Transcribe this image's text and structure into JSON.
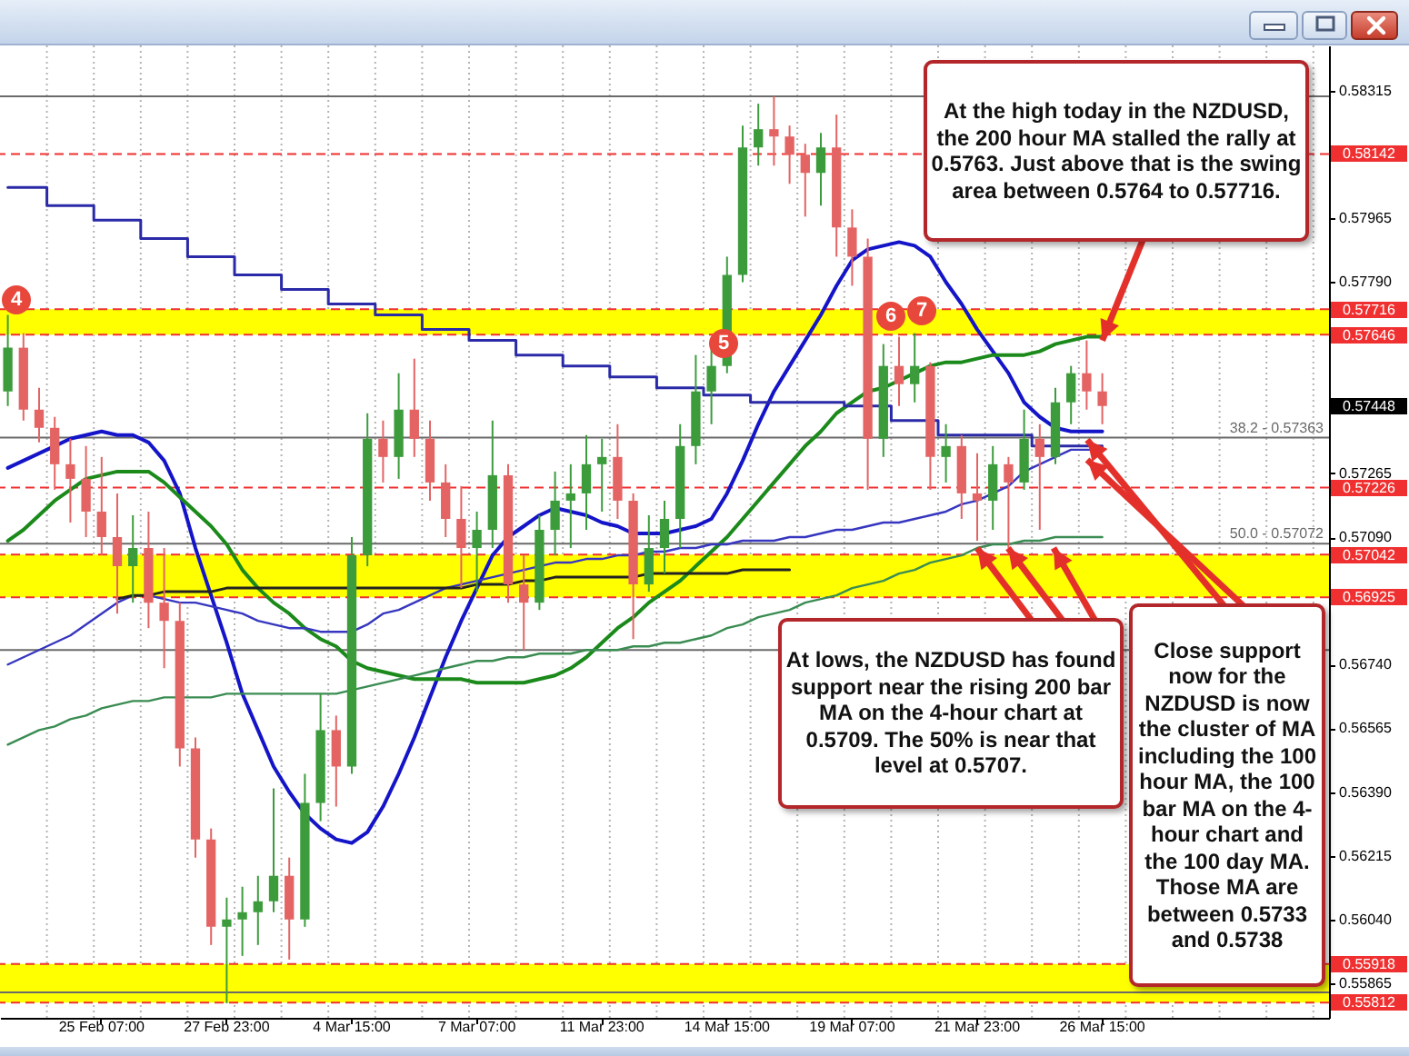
{
  "chart_data": {
    "type": "candlestick",
    "categories": [
      null,
      null,
      null,
      null,
      null,
      null,
      "25 Feb 07:00",
      null,
      null,
      null,
      null,
      null,
      null,
      null,
      "27 Feb 23:00",
      null,
      null,
      null,
      null,
      null,
      null,
      null,
      "4 Mar 15:00",
      null,
      null,
      null,
      null,
      null,
      null,
      null,
      "7 Mar 07:00",
      null,
      null,
      null,
      null,
      null,
      null,
      null,
      "11 Mar 23:00",
      null,
      null,
      null,
      null,
      null,
      null,
      null,
      "14 Mar 15:00",
      null,
      null,
      null,
      null,
      null,
      null,
      null,
      "19 Mar 07:00",
      null,
      null,
      null,
      null,
      null,
      null,
      null,
      "21 Mar 23:00",
      null,
      null,
      null,
      null,
      null,
      null,
      null,
      "26 Mar 15:00",
      null,
      null,
      null,
      null,
      null,
      null,
      null,
      null,
      null,
      null,
      null,
      null,
      null,
      null
    ],
    "ohlc": [
      [
        0.5749,
        0.577,
        0.5745,
        0.5761
      ],
      [
        0.5761,
        0.5765,
        0.5741,
        0.5744
      ],
      [
        0.5744,
        0.575,
        0.5735,
        0.5739
      ],
      [
        0.5739,
        0.5742,
        0.5722,
        0.5729
      ],
      [
        0.5729,
        0.5736,
        0.5713,
        0.5725
      ],
      [
        0.5725,
        0.5734,
        0.5709,
        0.5716
      ],
      [
        0.5716,
        0.5731,
        0.5704,
        0.5709
      ],
      [
        0.5709,
        0.5721,
        0.5688,
        0.5701
      ],
      [
        0.5701,
        0.5715,
        0.5691,
        0.5706
      ],
      [
        0.5706,
        0.5716,
        0.5684,
        0.5691
      ],
      [
        0.5691,
        0.5706,
        0.5673,
        0.5686
      ],
      [
        0.5686,
        0.5691,
        0.5646,
        0.5651
      ],
      [
        0.5651,
        0.5654,
        0.5621,
        0.5626
      ],
      [
        0.5626,
        0.5629,
        0.5597,
        0.5602
      ],
      [
        0.5602,
        0.561,
        0.5581,
        0.5604
      ],
      [
        0.5604,
        0.5613,
        0.5594,
        0.5606
      ],
      [
        0.5606,
        0.5616,
        0.5597,
        0.5609
      ],
      [
        0.5609,
        0.564,
        0.5606,
        0.5616
      ],
      [
        0.5616,
        0.5621,
        0.5593,
        0.5604
      ],
      [
        0.5604,
        0.5644,
        0.5602,
        0.5636
      ],
      [
        0.5636,
        0.5666,
        0.5631,
        0.5656
      ],
      [
        0.5656,
        0.566,
        0.5635,
        0.5646
      ],
      [
        0.5646,
        0.5709,
        0.5644,
        0.5704
      ],
      [
        0.5704,
        0.5743,
        0.5701,
        0.5736
      ],
      [
        0.5736,
        0.5741,
        0.5724,
        0.5731
      ],
      [
        0.5731,
        0.5754,
        0.5725,
        0.5744
      ],
      [
        0.5744,
        0.5758,
        0.5731,
        0.5736
      ],
      [
        0.5736,
        0.5741,
        0.5719,
        0.5724
      ],
      [
        0.5724,
        0.5729,
        0.5709,
        0.5714
      ],
      [
        0.5714,
        0.5723,
        0.5695,
        0.5706
      ],
      [
        0.5706,
        0.5716,
        0.5694,
        0.5711
      ],
      [
        0.5711,
        0.5741,
        0.5706,
        0.5726
      ],
      [
        0.5726,
        0.5729,
        0.5691,
        0.5696
      ],
      [
        0.5696,
        0.5704,
        0.5678,
        0.5691
      ],
      [
        0.5691,
        0.5715,
        0.5689,
        0.5711
      ],
      [
        0.5711,
        0.5727,
        0.5704,
        0.5719
      ],
      [
        0.5719,
        0.5729,
        0.5706,
        0.5721
      ],
      [
        0.5721,
        0.5737,
        0.5711,
        0.5729
      ],
      [
        0.5729,
        0.5736,
        0.5716,
        0.5731
      ],
      [
        0.5731,
        0.574,
        0.5714,
        0.5719
      ],
      [
        0.5719,
        0.5721,
        0.5681,
        0.5696
      ],
      [
        0.5696,
        0.5715,
        0.5694,
        0.5706
      ],
      [
        0.5706,
        0.5719,
        0.5699,
        0.5714
      ],
      [
        0.5714,
        0.574,
        0.5706,
        0.5734
      ],
      [
        0.5734,
        0.5759,
        0.5729,
        0.5749
      ],
      [
        0.5749,
        0.5762,
        0.574,
        0.5756
      ],
      [
        0.5756,
        0.5786,
        0.5754,
        0.5781
      ],
      [
        0.5781,
        0.5822,
        0.5779,
        0.5816
      ],
      [
        0.5816,
        0.5828,
        0.5811,
        0.5821
      ],
      [
        0.5821,
        0.583,
        0.5811,
        0.5819
      ],
      [
        0.5819,
        0.5822,
        0.5806,
        0.5814
      ],
      [
        0.5814,
        0.5817,
        0.5797,
        0.5809
      ],
      [
        0.5809,
        0.582,
        0.58,
        0.5816
      ],
      [
        0.5816,
        0.5825,
        0.5786,
        0.5794
      ],
      [
        0.5794,
        0.5799,
        0.5778,
        0.5786
      ],
      [
        0.5786,
        0.5791,
        0.5722,
        0.5736
      ],
      [
        0.5736,
        0.5762,
        0.5731,
        0.5756
      ],
      [
        0.5756,
        0.5764,
        0.5745,
        0.5751
      ],
      [
        0.5751,
        0.5765,
        0.5746,
        0.5756
      ],
      [
        0.5756,
        0.5757,
        0.5722,
        0.5731
      ],
      [
        0.5731,
        0.574,
        0.5724,
        0.5734
      ],
      [
        0.5734,
        0.5737,
        0.5714,
        0.5721
      ],
      [
        0.5721,
        0.5732,
        0.5708,
        0.5719
      ],
      [
        0.5719,
        0.5734,
        0.5711,
        0.5729
      ],
      [
        0.5729,
        0.5731,
        0.5706,
        0.5724
      ],
      [
        0.5724,
        0.5744,
        0.5722,
        0.5736
      ],
      [
        0.5736,
        0.574,
        0.5711,
        0.5731
      ],
      [
        0.5731,
        0.575,
        0.5729,
        0.5746
      ],
      [
        0.5746,
        0.5756,
        0.574,
        0.5754
      ],
      [
        0.5754,
        0.5763,
        0.5744,
        0.5749
      ],
      [
        0.5749,
        0.5754,
        0.574,
        0.5745
      ],
      null,
      null,
      null,
      null,
      null,
      null,
      null,
      null,
      null,
      null,
      null,
      null,
      null,
      null
    ],
    "colors": [
      "#3c9c3c",
      "#e46464",
      "#e46464",
      "#e46464",
      "#e46464",
      "#e46464",
      "#e46464",
      "#e46464",
      "#3c9c3c",
      "#e46464",
      "#e46464",
      "#e46464",
      "#e46464",
      "#e46464",
      "#3c9c3c",
      "#3c9c3c",
      "#3c9c3c",
      "#3c9c3c",
      "#e46464",
      "#3c9c3c",
      "#3c9c3c",
      "#e46464",
      "#3c9c3c",
      "#3c9c3c",
      "#e46464",
      "#3c9c3c",
      "#e46464",
      "#e46464",
      "#e46464",
      "#e46464",
      "#3c9c3c",
      "#3c9c3c",
      "#e46464",
      "#e46464",
      "#3c9c3c",
      "#3c9c3c",
      "#3c9c3c",
      "#3c9c3c",
      "#3c9c3c",
      "#e46464",
      "#e46464",
      "#3c9c3c",
      "#3c9c3c",
      "#3c9c3c",
      "#3c9c3c",
      "#3c9c3c",
      "#3c9c3c",
      "#3c9c3c",
      "#3c9c3c",
      "#e46464",
      "#e46464",
      "#e46464",
      "#3c9c3c",
      "#e46464",
      "#e46464",
      "#e46464",
      "#3c9c3c",
      "#e46464",
      "#3c9c3c",
      "#e46464",
      "#3c9c3c",
      "#e46464",
      "#e46464",
      "#3c9c3c",
      "#e46464",
      "#3c9c3c",
      "#e46464",
      "#3c9c3c",
      "#3c9c3c",
      "#e46464",
      "#e46464",
      null,
      null,
      null,
      null,
      null,
      null,
      null,
      null,
      null,
      null,
      null,
      null,
      null,
      null
    ],
    "series": [
      {
        "type": "line",
        "color": "#1414c8",
        "values": [
          0.5728,
          0.573,
          0.5732,
          0.5734,
          0.5736,
          0.5737,
          0.5738,
          0.5737,
          0.5737,
          0.5735,
          0.573,
          0.5721,
          0.5706,
          0.5693,
          0.568,
          0.5666,
          0.5656,
          0.5646,
          0.5639,
          0.5633,
          0.5629,
          0.5626,
          0.5625,
          0.5628,
          0.5635,
          0.5644,
          0.5654,
          0.5665,
          0.5676,
          0.5686,
          0.5695,
          0.5704,
          0.5709,
          0.5712,
          0.5715,
          0.5717,
          0.5716,
          0.5715,
          0.5713,
          0.5712,
          0.571,
          0.571,
          0.571,
          0.5711,
          0.5712,
          0.5714,
          0.5721,
          0.573,
          0.574,
          0.5749,
          0.5756,
          0.5763,
          0.577,
          0.5778,
          0.5785,
          0.5788,
          0.5789,
          0.579,
          0.5789,
          0.5786,
          0.5779,
          0.5773,
          0.5766,
          0.576,
          0.5754,
          0.5746,
          0.5742,
          0.5739,
          0.5738,
          0.5738,
          0.5738,
          null,
          null,
          null,
          null,
          null,
          null,
          null,
          null,
          null,
          null,
          null,
          null,
          null,
          null
        ]
      },
      {
        "type": "line",
        "color": "#1b8a1b",
        "values": [
          0.5708,
          0.5711,
          0.5715,
          0.5719,
          0.5722,
          0.5725,
          0.5726,
          0.5727,
          0.5727,
          0.5727,
          0.5724,
          0.572,
          0.5716,
          0.5712,
          0.5707,
          0.57,
          0.5695,
          0.5691,
          0.5688,
          0.5684,
          0.5681,
          0.5679,
          0.5675,
          0.5673,
          0.5672,
          0.5671,
          0.567,
          0.567,
          0.567,
          0.567,
          0.5669,
          0.5669,
          0.5669,
          0.5669,
          0.567,
          0.5671,
          0.5673,
          0.5676,
          0.568,
          0.5684,
          0.5687,
          0.5691,
          0.5694,
          0.5697,
          0.5701,
          0.5705,
          0.5709,
          0.5714,
          0.5719,
          0.5724,
          0.5729,
          0.5734,
          0.5738,
          0.5743,
          0.5746,
          0.5749,
          0.575,
          0.5752,
          0.5754,
          0.5756,
          0.5757,
          0.5757,
          0.5758,
          0.5759,
          0.5759,
          0.5759,
          0.576,
          0.5762,
          0.5763,
          0.5764,
          0.5764,
          null,
          null,
          null,
          null,
          null,
          null,
          null,
          null,
          null,
          null,
          null,
          null,
          null,
          null
        ]
      },
      {
        "type": "line",
        "color": "#3636c0",
        "values": [
          0.5674,
          0.5676,
          0.5678,
          0.568,
          0.5682,
          0.5685,
          0.5688,
          0.5691,
          0.5693,
          0.5693,
          0.5692,
          0.5691,
          0.5691,
          0.569,
          0.5689,
          0.5688,
          0.5686,
          0.5685,
          0.5684,
          0.5684,
          0.5683,
          0.5683,
          0.5683,
          0.5685,
          0.5688,
          0.5689,
          0.5691,
          0.5693,
          0.5695,
          0.5696,
          0.5697,
          0.5698,
          0.5699,
          0.57,
          0.5701,
          0.5702,
          0.5702,
          0.5703,
          0.5703,
          0.5704,
          0.5704,
          0.5705,
          0.5705,
          0.5706,
          0.5706,
          0.5707,
          0.5707,
          0.5708,
          0.5708,
          0.5708,
          0.5709,
          0.5709,
          0.571,
          0.5711,
          0.5711,
          0.5712,
          0.5713,
          0.5713,
          0.5714,
          0.5715,
          0.5716,
          0.5718,
          0.5719,
          0.5721,
          0.5723,
          0.5727,
          0.5729,
          0.5731,
          0.5733,
          0.5733,
          0.5733,
          null,
          null,
          null,
          null,
          null,
          null,
          null,
          null,
          null,
          null,
          null,
          null,
          null,
          null
        ]
      },
      {
        "type": "line",
        "color": "#3a8c52",
        "values": [
          0.5652,
          0.5654,
          0.5656,
          0.5657,
          0.5659,
          0.566,
          0.5662,
          0.5663,
          0.5664,
          0.5664,
          0.5665,
          0.5665,
          0.5665,
          0.5665,
          0.5666,
          0.5666,
          0.5666,
          0.5666,
          0.5666,
          0.5666,
          0.5666,
          0.5666,
          0.5667,
          0.5668,
          0.5669,
          0.567,
          0.5671,
          0.5672,
          0.5673,
          0.5674,
          0.5675,
          0.5675,
          0.5676,
          0.5676,
          0.5677,
          0.5677,
          0.5677,
          0.5678,
          0.5678,
          0.5678,
          0.5679,
          0.5679,
          0.568,
          0.568,
          0.5681,
          0.5682,
          0.5684,
          0.5685,
          0.5687,
          0.5688,
          0.5689,
          0.5691,
          0.5692,
          0.5693,
          0.5695,
          0.5696,
          0.5697,
          0.5699,
          0.57,
          0.5702,
          0.5703,
          0.5704,
          0.5706,
          0.5707,
          0.5707,
          0.5708,
          0.5708,
          0.5709,
          0.5709,
          0.5709,
          0.5709,
          null,
          null,
          null,
          null,
          null,
          null,
          null,
          null,
          null,
          null,
          null,
          null,
          null,
          null
        ]
      },
      {
        "type": "line",
        "color": "#222222",
        "values": [
          null,
          null,
          null,
          null,
          null,
          null,
          null,
          0.5692,
          0.5693,
          0.5693,
          0.5694,
          0.5694,
          0.5694,
          0.5694,
          0.5695,
          0.5695,
          0.5695,
          0.5695,
          0.5695,
          0.5695,
          0.5695,
          0.5695,
          0.5695,
          0.5695,
          0.5695,
          0.5695,
          0.5695,
          0.5695,
          0.5695,
          0.5695,
          0.5696,
          0.5696,
          0.5696,
          0.5697,
          0.5697,
          0.5698,
          0.5698,
          0.5698,
          0.5698,
          0.5698,
          0.5698,
          0.5699,
          0.5699,
          0.5699,
          0.5699,
          0.5699,
          0.5699,
          0.57,
          0.57,
          0.57,
          0.57,
          null,
          null,
          null,
          null,
          null,
          null,
          null,
          null,
          null,
          null,
          null,
          null,
          null,
          null,
          null,
          null,
          null,
          null,
          null,
          null,
          null,
          null,
          null,
          null,
          null,
          null,
          null,
          null,
          null,
          null,
          null,
          null,
          null,
          null
        ]
      },
      {
        "type": "step",
        "color": "#2a2aa8",
        "values": [
          0.5805,
          0.5805,
          0.5805,
          0.58,
          0.58,
          0.58,
          0.5796,
          0.5796,
          0.5796,
          0.5791,
          0.5791,
          0.5791,
          0.5786,
          0.5786,
          0.5786,
          0.5781,
          0.5781,
          0.5781,
          0.5777,
          0.5777,
          0.5777,
          0.5773,
          0.5773,
          0.5773,
          0.577,
          0.577,
          0.577,
          0.5766,
          0.5766,
          0.5766,
          0.5763,
          0.5763,
          0.5763,
          0.5759,
          0.5759,
          0.5759,
          0.5756,
          0.5756,
          0.5756,
          0.5753,
          0.5753,
          0.5753,
          0.575,
          0.575,
          0.575,
          0.5748,
          0.5748,
          0.5748,
          0.5746,
          0.5746,
          0.5746,
          0.5746,
          0.5746,
          0.5746,
          0.5745,
          0.5745,
          0.5745,
          0.5741,
          0.5741,
          0.5741,
          0.5737,
          0.5737,
          0.5737,
          0.5737,
          0.5737,
          0.5737,
          0.5734,
          0.5734,
          0.5734,
          0.5734,
          0.5734,
          null,
          null,
          null,
          null,
          null,
          null,
          null,
          null,
          null,
          null,
          null,
          null,
          null,
          null
        ]
      }
    ],
    "ylim": [
      0.5577,
      0.5844
    ],
    "yticks": [
      0.58315,
      0.57965,
      {
        "value": 0.5779,
        "label": "0.57790"
      },
      0.57265,
      {
        "value": 0.5709,
        "label": "0.57090"
      },
      {
        "value": 0.5674,
        "label": "0.56740"
      },
      0.56565,
      {
        "value": 0.5639,
        "label": "0.56390"
      },
      0.56215,
      {
        "value": 0.5604,
        "label": "0.56040"
      },
      0.55865
    ],
    "grid": "x",
    "bands": [
      {
        "axis": "y",
        "from": 0.57646,
        "to": 0.57716,
        "color": "#ffff00"
      },
      {
        "axis": "y",
        "from": 0.56925,
        "to": 0.57042,
        "color": "#ffff00"
      },
      {
        "axis": "y",
        "from": 0.55812,
        "to": 0.55918,
        "color": "#ffff00"
      }
    ],
    "ref_lines": [
      {
        "axis": "y",
        "value": 0.583,
        "color": "#6a6a6a",
        "line_style": "solid"
      },
      {
        "axis": "y",
        "value": 0.58142,
        "label": "0.58142",
        "color": "#f03030",
        "line_style": "dashed"
      },
      {
        "axis": "y",
        "value": 0.57716,
        "label": "0.57716",
        "color": "#f03030",
        "line_style": "dashed"
      },
      {
        "axis": "y",
        "value": 0.57646,
        "label": "0.57646",
        "color": "#f03030",
        "line_style": "dashed"
      },
      {
        "axis": "y",
        "value": 0.57363,
        "color": "#6a6a6a",
        "line_style": "solid"
      },
      {
        "axis": "y",
        "value": 0.57226,
        "label": "0.57226",
        "color": "#f03030",
        "line_style": "dashed"
      },
      {
        "axis": "y",
        "value": 0.57072,
        "color": "#6a6a6a",
        "line_style": "solid"
      },
      {
        "axis": "y",
        "value": 0.57042,
        "label": "0.57042",
        "color": "#f03030",
        "line_style": "dashed"
      },
      {
        "axis": "y",
        "value": 0.56925,
        "label": "0.56925",
        "color": "#f03030",
        "line_style": "dashed"
      },
      {
        "axis": "y",
        "value": 0.5678,
        "color": "#6a6a6a",
        "line_style": "solid"
      },
      {
        "axis": "y",
        "value": 0.55918,
        "label": "0.55918",
        "color": "#f03030",
        "line_style": "dashed"
      },
      {
        "axis": "y",
        "value": 0.5584,
        "color": "#6a6a6a",
        "line_style": "solid"
      },
      {
        "axis": "y",
        "value": 0.55812,
        "label": "0.55812",
        "color": "#f03030",
        "line_style": "dashed"
      }
    ],
    "annotations": [
      {
        "text": "At the high today in the NZDUSD, the 200 hour MA stalled the rally at 0.5763. Just above that is the swing area between 0.5764 to 0.57716.",
        "x": "26 Mar 15:00",
        "y": 0.5763
      },
      {
        "text": "At lows, the NZDUSD has found support near the rising 200 bar MA on the 4-hour chart at 0.5709. The 50% is near that level at 0.5707.",
        "x": "21 Mar 23:00",
        "y": 0.5706
      },
      "Close support now for the NZDUSD is now the cluster of MA including the 100 hour MA, the 100 bar MA on the 4-hour chart and the 100 day MA. Those MA are between 0.5733 and 0.5738",
      {
        "text": "4",
        "y": 0.577
      },
      {
        "text": "5",
        "y": 0.5762
      },
      {
        "text": "6",
        "y": 0.5762
      },
      {
        "text": "7",
        "y": 0.5765
      },
      {
        "text": "38.2 - 0.57363",
        "y": 0.57363
      },
      {
        "text": "50.0 - 0.57072",
        "y": 0.57072
      },
      "0.57448"
    ]
  }
}
